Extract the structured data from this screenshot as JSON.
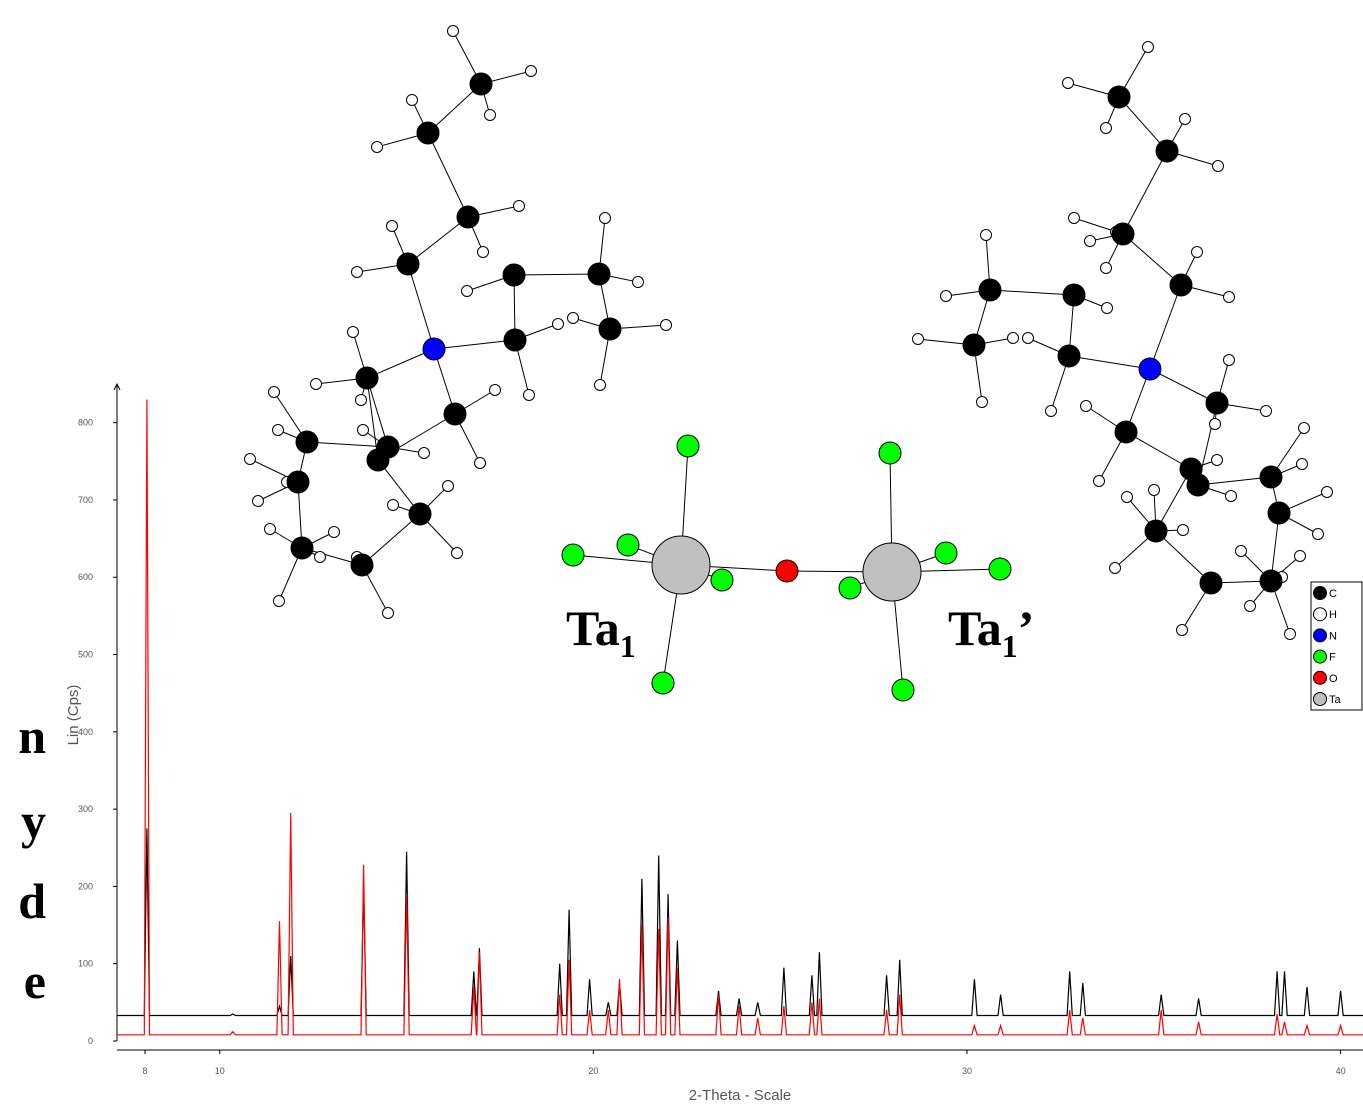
{
  "chart_data": {
    "type": "line",
    "x_label": "2-Theta - Scale",
    "y_label": "Lin (Cps)",
    "xlim": [
      7.25,
      40.6
    ],
    "xticks": [
      8,
      10,
      20,
      30,
      40
    ],
    "ylim": [
      0,
      850
    ],
    "yticks": [
      0,
      100,
      200,
      300,
      400,
      500,
      600,
      700,
      800
    ],
    "x": [
      7.25,
      7.98,
      8.05,
      8.12,
      10.28,
      10.35,
      10.42,
      11.53,
      11.6,
      11.67,
      11.83,
      11.9,
      11.97,
      13.78,
      13.85,
      13.92,
      14.93,
      15.0,
      15.07,
      16.73,
      16.8,
      16.87,
      16.88,
      16.95,
      17.02,
      19.03,
      19.1,
      19.17,
      19.28,
      19.35,
      19.42,
      19.83,
      19.9,
      19.97,
      20.33,
      20.4,
      20.47,
      20.63,
      20.7,
      20.77,
      21.23,
      21.3,
      21.37,
      21.68,
      21.75,
      21.82,
      21.93,
      22.0,
      22.07,
      22.18,
      22.25,
      22.32,
      23.28,
      23.35,
      23.42,
      23.83,
      23.9,
      23.97,
      24.33,
      24.4,
      24.47,
      25.03,
      25.1,
      25.17,
      25.78,
      25.85,
      25.92,
      25.98,
      26.05,
      26.12,
      27.78,
      27.85,
      27.92,
      28.13,
      28.2,
      28.27,
      30.13,
      30.2,
      30.27,
      30.83,
      30.9,
      30.97,
      32.68,
      32.75,
      32.82,
      33.03,
      33.1,
      33.17,
      35.13,
      35.2,
      35.27,
      36.13,
      36.2,
      36.27,
      38.23,
      38.3,
      38.37,
      38.43,
      38.5,
      38.57,
      39.03,
      39.1,
      39.17,
      39.93,
      40.0,
      40.07,
      40.6
    ],
    "series": [
      {
        "color": "#000000",
        "values": [
          33,
          33,
          275,
          33,
          33,
          35,
          33,
          33,
          45,
          33,
          33,
          110,
          33,
          33,
          200,
          33,
          33,
          245,
          33,
          33,
          90,
          33,
          33,
          120,
          33,
          33,
          100,
          33,
          33,
          170,
          33,
          33,
          80,
          33,
          33,
          50,
          33,
          33,
          75,
          33,
          33,
          210,
          33,
          33,
          240,
          33,
          33,
          190,
          33,
          33,
          130,
          33,
          33,
          65,
          33,
          33,
          55,
          33,
          33,
          50,
          33,
          33,
          95,
          33,
          33,
          85,
          33,
          33,
          115,
          33,
          33,
          85,
          33,
          33,
          105,
          33,
          33,
          80,
          33,
          33,
          60,
          33,
          33,
          90,
          33,
          33,
          75,
          33,
          33,
          60,
          33,
          33,
          55,
          33,
          33,
          90,
          33,
          33,
          90,
          33,
          33,
          70,
          33,
          33,
          65,
          33,
          33
        ]
      },
      {
        "color": "#ff0000",
        "values": [
          8,
          8,
          830,
          8,
          8,
          12,
          8,
          8,
          155,
          8,
          8,
          295,
          8,
          8,
          228,
          8,
          8,
          190,
          8,
          8,
          70,
          8,
          8,
          115,
          8,
          8,
          60,
          8,
          8,
          105,
          8,
          8,
          40,
          8,
          8,
          40,
          8,
          8,
          80,
          8,
          8,
          150,
          8,
          8,
          145,
          8,
          8,
          160,
          8,
          8,
          95,
          8,
          8,
          60,
          8,
          8,
          45,
          8,
          8,
          30,
          8,
          8,
          45,
          8,
          8,
          50,
          8,
          8,
          55,
          8,
          8,
          40,
          8,
          8,
          60,
          8,
          8,
          20,
          8,
          8,
          20,
          8,
          8,
          40,
          8,
          8,
          30,
          8,
          8,
          40,
          8,
          8,
          25,
          8,
          8,
          35,
          8,
          8,
          25,
          8,
          8,
          20,
          8,
          8,
          20,
          8,
          8
        ]
      }
    ]
  },
  "molecule": {
    "labels": [
      {
        "main": "Ta",
        "sub": "1",
        "suffix": ""
      },
      {
        "main": "Ta",
        "sub": "1",
        "suffix": "’"
      }
    ],
    "legend": [
      "C",
      "H",
      "N",
      "F",
      "O",
      "Ta"
    ]
  },
  "side_text": [
    "n",
    "y",
    "d",
    "e"
  ]
}
